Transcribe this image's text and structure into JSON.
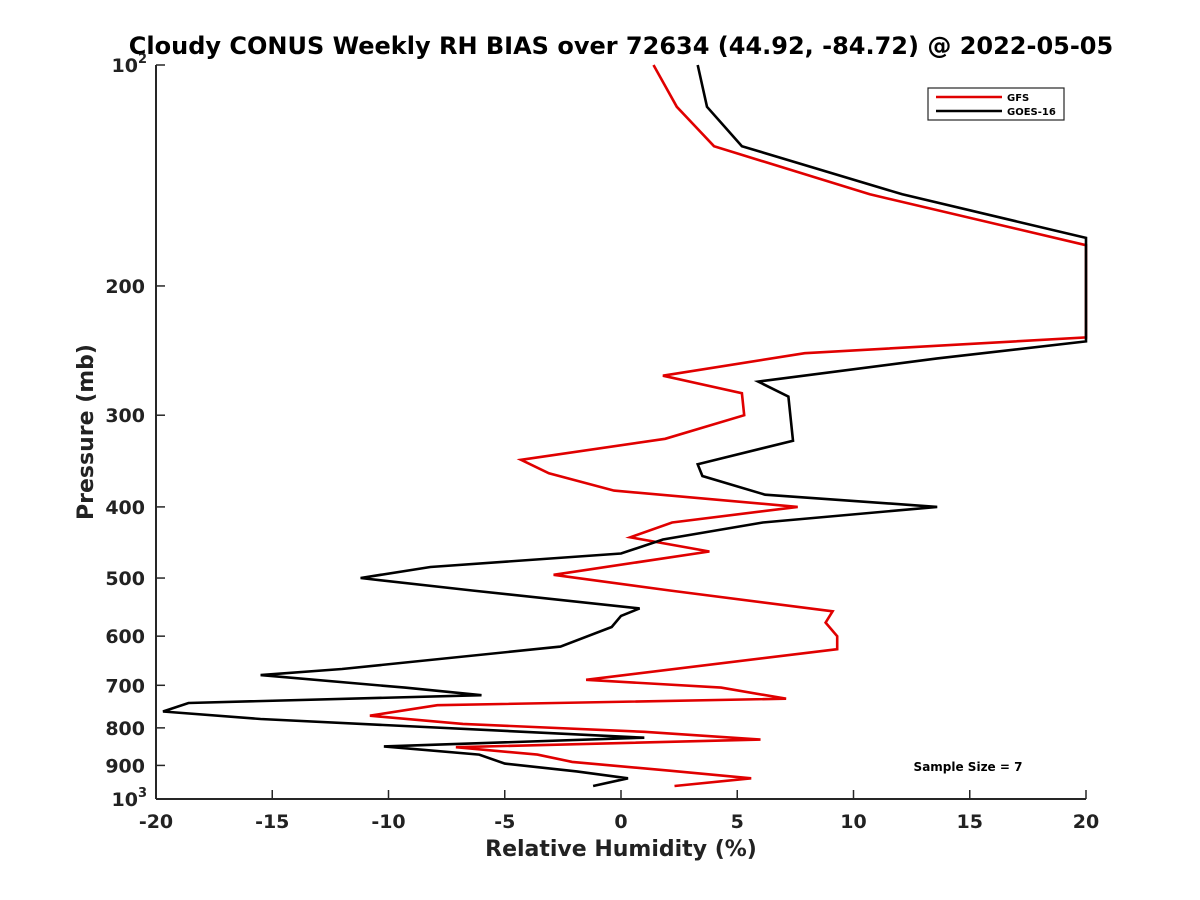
{
  "chart_data": {
    "type": "line",
    "title": "Cloudy CONUS Weekly RH BIAS over 72634 (44.92, -84.72) @ 2022-05-05",
    "xlabel": "Relative Humidity (%)",
    "ylabel": "Pressure (mb)",
    "xlim": [
      -20,
      20
    ],
    "ylim": [
      100,
      1000
    ],
    "y_scale": "log",
    "y_reversed": true,
    "grid": false,
    "legend_position": "top-right",
    "annotation": "Sample Size = 7",
    "x_ticks": [
      {
        "value": -20,
        "label": "-20"
      },
      {
        "value": -15,
        "label": "-15"
      },
      {
        "value": -10,
        "label": "-10"
      },
      {
        "value": -5,
        "label": "-5"
      },
      {
        "value": 0,
        "label": "0"
      },
      {
        "value": 5,
        "label": "5"
      },
      {
        "value": 10,
        "label": "10"
      },
      {
        "value": 15,
        "label": "15"
      },
      {
        "value": 20,
        "label": "20"
      }
    ],
    "y_ticks": [
      {
        "value": 100,
        "label": "10",
        "sup": "2"
      },
      {
        "value": 200,
        "label": "200"
      },
      {
        "value": 300,
        "label": "300"
      },
      {
        "value": 400,
        "label": "400"
      },
      {
        "value": 500,
        "label": "500"
      },
      {
        "value": 600,
        "label": "600"
      },
      {
        "value": 700,
        "label": "700"
      },
      {
        "value": 800,
        "label": "800"
      },
      {
        "value": 900,
        "label": "900"
      },
      {
        "value": 1000,
        "label": "10",
        "sup": "3"
      }
    ],
    "series": [
      {
        "name": "GFS",
        "color": "#e00000",
        "points": [
          {
            "x": 1.4,
            "p": 100
          },
          {
            "x": 2.4,
            "p": 114
          },
          {
            "x": 4.0,
            "p": 129
          },
          {
            "x": 10.7,
            "p": 150
          },
          {
            "x": 20.0,
            "p": 176
          },
          {
            "x": 20.0,
            "p": 235
          },
          {
            "x": 7.9,
            "p": 247
          },
          {
            "x": 1.8,
            "p": 265
          },
          {
            "x": 5.2,
            "p": 280
          },
          {
            "x": 5.3,
            "p": 300
          },
          {
            "x": 1.9,
            "p": 323
          },
          {
            "x": -4.3,
            "p": 345
          },
          {
            "x": -3.1,
            "p": 360
          },
          {
            "x": -0.3,
            "p": 380
          },
          {
            "x": 7.6,
            "p": 400
          },
          {
            "x": 2.2,
            "p": 420
          },
          {
            "x": 0.4,
            "p": 440
          },
          {
            "x": 3.8,
            "p": 460
          },
          {
            "x": -2.9,
            "p": 495
          },
          {
            "x": 2.1,
            "p": 520
          },
          {
            "x": 9.1,
            "p": 555
          },
          {
            "x": 8.8,
            "p": 575
          },
          {
            "x": 9.3,
            "p": 600
          },
          {
            "x": 9.3,
            "p": 625
          },
          {
            "x": -1.5,
            "p": 688
          },
          {
            "x": 4.3,
            "p": 705
          },
          {
            "x": 7.1,
            "p": 730
          },
          {
            "x": -7.9,
            "p": 745
          },
          {
            "x": -10.8,
            "p": 770
          },
          {
            "x": -6.8,
            "p": 790
          },
          {
            "x": 1.0,
            "p": 810
          },
          {
            "x": 6.0,
            "p": 830
          },
          {
            "x": -7.1,
            "p": 850
          },
          {
            "x": -3.6,
            "p": 870
          },
          {
            "x": -2.1,
            "p": 890
          },
          {
            "x": 2.1,
            "p": 915
          },
          {
            "x": 5.6,
            "p": 937
          },
          {
            "x": 2.3,
            "p": 960
          }
        ]
      },
      {
        "name": "GOES-16",
        "color": "#000000",
        "points": [
          {
            "x": 3.3,
            "p": 100
          },
          {
            "x": 3.7,
            "p": 114
          },
          {
            "x": 5.2,
            "p": 129
          },
          {
            "x": 12.1,
            "p": 150
          },
          {
            "x": 20.0,
            "p": 172
          },
          {
            "x": 20.0,
            "p": 238
          },
          {
            "x": 13.6,
            "p": 251
          },
          {
            "x": 5.9,
            "p": 270
          },
          {
            "x": 7.2,
            "p": 283
          },
          {
            "x": 7.4,
            "p": 325
          },
          {
            "x": 3.3,
            "p": 350
          },
          {
            "x": 3.5,
            "p": 363
          },
          {
            "x": 6.2,
            "p": 385
          },
          {
            "x": 13.6,
            "p": 400
          },
          {
            "x": 6.1,
            "p": 420
          },
          {
            "x": 1.8,
            "p": 443
          },
          {
            "x": 0.0,
            "p": 463
          },
          {
            "x": -8.2,
            "p": 483
          },
          {
            "x": -11.2,
            "p": 500
          },
          {
            "x": -6.4,
            "p": 520
          },
          {
            "x": 0.8,
            "p": 550
          },
          {
            "x": 0.0,
            "p": 563
          },
          {
            "x": -0.4,
            "p": 583
          },
          {
            "x": -2.6,
            "p": 620
          },
          {
            "x": -12.0,
            "p": 665
          },
          {
            "x": -15.5,
            "p": 678
          },
          {
            "x": -9.3,
            "p": 705
          },
          {
            "x": -6.0,
            "p": 722
          },
          {
            "x": -18.6,
            "p": 740
          },
          {
            "x": -19.7,
            "p": 760
          },
          {
            "x": -15.5,
            "p": 778
          },
          {
            "x": 1.0,
            "p": 825
          },
          {
            "x": -10.2,
            "p": 848
          },
          {
            "x": -6.1,
            "p": 870
          },
          {
            "x": -5.0,
            "p": 895
          },
          {
            "x": -1.9,
            "p": 917
          },
          {
            "x": 0.3,
            "p": 937
          },
          {
            "x": -1.2,
            "p": 960
          }
        ]
      }
    ]
  }
}
